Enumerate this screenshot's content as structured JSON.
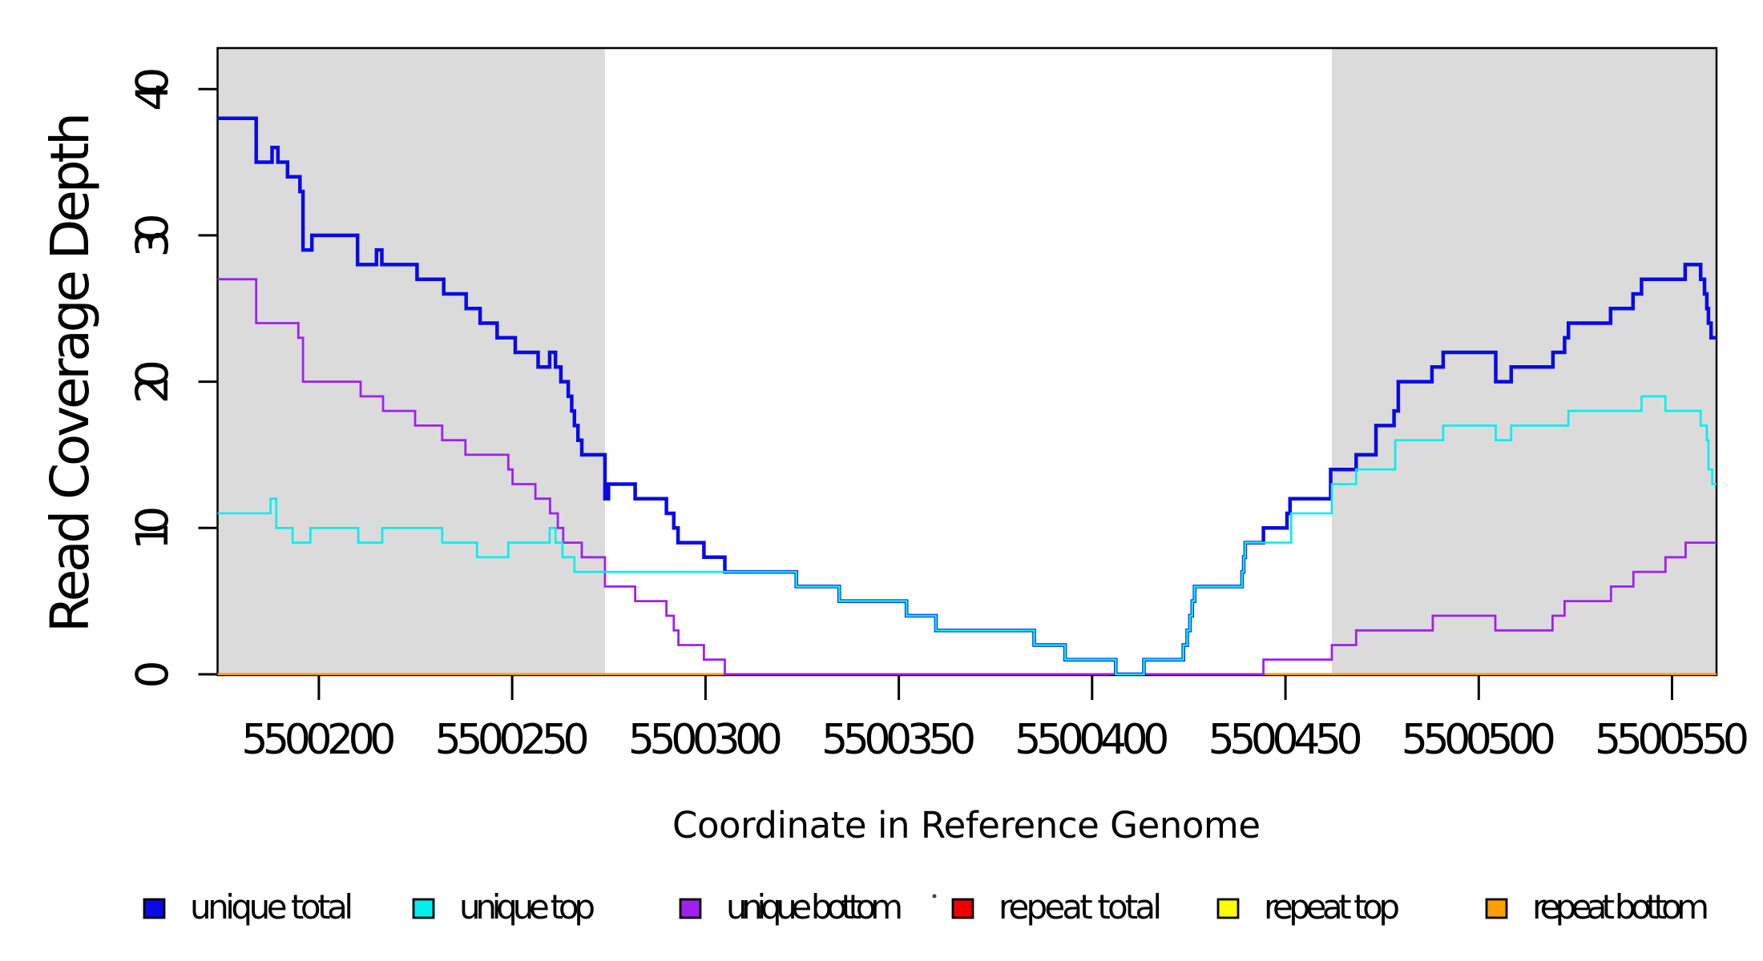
{
  "chart_data": {
    "type": "line",
    "subtype": "step-after",
    "title": "",
    "xlabel": "Coordinate in Reference Genome",
    "ylabel": "Read Coverage Depth",
    "xlim": [
      5500173.8,
      5500561.5
    ],
    "ylim": [
      0,
      42.8
    ],
    "x_ticks": [
      5500200,
      5500250,
      5500300,
      5500350,
      5500400,
      5500450,
      5500500,
      5500550
    ],
    "y_ticks": [
      0,
      10,
      20,
      30,
      40
    ],
    "grid": false,
    "legend_position": "bottom",
    "background_color": "#ffffff",
    "shaded_region_color": "#dbdbdb",
    "shaded_regions": [
      {
        "from": 5500173.8,
        "to": 5500274.0
      },
      {
        "from": 5500462.0,
        "to": 5500561.5
      }
    ],
    "series": [
      {
        "name": "unique total",
        "color": "#0a0ae6",
        "line_width": 4.5,
        "points": [
          [
            5500173.8,
            38
          ],
          [
            5500183.8,
            35
          ],
          [
            5500187.9,
            36
          ],
          [
            5500189.4,
            35
          ],
          [
            5500191.9,
            34
          ],
          [
            5500195.1,
            33
          ],
          [
            5500195.9,
            29
          ],
          [
            5500198.2,
            30
          ],
          [
            5500210.0,
            28
          ],
          [
            5500214.9,
            29
          ],
          [
            5500216.3,
            28
          ],
          [
            5500225.4,
            27
          ],
          [
            5500232.3,
            26
          ],
          [
            5500238.1,
            25
          ],
          [
            5500241.7,
            24
          ],
          [
            5500246.1,
            23
          ],
          [
            5500250.8,
            22
          ],
          [
            5500256.7,
            21
          ],
          [
            5500259.7,
            22
          ],
          [
            5500261.2,
            21
          ],
          [
            5500262.6,
            20
          ],
          [
            5500264.5,
            19
          ],
          [
            5500265.4,
            18
          ],
          [
            5500266.1,
            17
          ],
          [
            5500267.0,
            16
          ],
          [
            5500268.0,
            15
          ],
          [
            5500274.0,
            12
          ],
          [
            5500274.9,
            13
          ],
          [
            5500281.8,
            12
          ],
          [
            5500289.9,
            11
          ],
          [
            5500291.8,
            10
          ],
          [
            5500292.9,
            9
          ],
          [
            5500299.6,
            8
          ],
          [
            5500305.0,
            7
          ],
          [
            5500323.5,
            6
          ],
          [
            5500334.6,
            5
          ],
          [
            5500352.0,
            4
          ],
          [
            5500359.6,
            3
          ],
          [
            5500385.0,
            2
          ],
          [
            5500393.0,
            1
          ],
          [
            5500406.1,
            0
          ],
          [
            5500413.4,
            1
          ],
          [
            5500423.6,
            2
          ],
          [
            5500424.6,
            3
          ],
          [
            5500425.3,
            4
          ],
          [
            5500425.9,
            5
          ],
          [
            5500426.5,
            6
          ],
          [
            5500438.8,
            7
          ],
          [
            5500439.2,
            8
          ],
          [
            5500439.6,
            9
          ],
          [
            5500444.3,
            10
          ],
          [
            5500450.4,
            11
          ],
          [
            5500451.2,
            12
          ],
          [
            5500461.7,
            14
          ],
          [
            5500468.3,
            15
          ],
          [
            5500473.4,
            17
          ],
          [
            5500478.1,
            18
          ],
          [
            5500479.2,
            20
          ],
          [
            5500487.9,
            21
          ],
          [
            5500490.8,
            22
          ],
          [
            5500504.4,
            20
          ],
          [
            5500508.4,
            21
          ],
          [
            5500519.2,
            22
          ],
          [
            5500522.2,
            23
          ],
          [
            5500523.2,
            24
          ],
          [
            5500534.1,
            25
          ],
          [
            5500539.9,
            26
          ],
          [
            5500542.1,
            27
          ],
          [
            5500553.4,
            28
          ],
          [
            5500557.4,
            27
          ],
          [
            5500558.4,
            26
          ],
          [
            5500559.0,
            25
          ],
          [
            5500559.4,
            24
          ],
          [
            5500560.1,
            23
          ]
        ]
      },
      {
        "name": "unique top",
        "color": "#00eeee",
        "line_width": 2.6,
        "points": [
          [
            5500173.8,
            11
          ],
          [
            5500187.5,
            12
          ],
          [
            5500189.0,
            10
          ],
          [
            5500193.2,
            9
          ],
          [
            5500197.8,
            10
          ],
          [
            5500210.2,
            9
          ],
          [
            5500216.4,
            10
          ],
          [
            5500231.9,
            9
          ],
          [
            5500240.9,
            8
          ],
          [
            5500249.0,
            9
          ],
          [
            5500259.7,
            10
          ],
          [
            5500261.2,
            9
          ],
          [
            5500263.0,
            8
          ],
          [
            5500266.1,
            7
          ],
          [
            5500323.5,
            6
          ],
          [
            5500334.6,
            5
          ],
          [
            5500352.0,
            4
          ],
          [
            5500359.6,
            3
          ],
          [
            5500385.0,
            2
          ],
          [
            5500393.0,
            1
          ],
          [
            5500406.1,
            0
          ],
          [
            5500413.4,
            1
          ],
          [
            5500423.6,
            2
          ],
          [
            5500424.6,
            3
          ],
          [
            5500425.3,
            4
          ],
          [
            5500425.9,
            5
          ],
          [
            5500426.5,
            6
          ],
          [
            5500438.8,
            7
          ],
          [
            5500439.2,
            8
          ],
          [
            5500439.6,
            9
          ],
          [
            5500451.5,
            11
          ],
          [
            5500462.0,
            13
          ],
          [
            5500468.3,
            14
          ],
          [
            5500478.4,
            16
          ],
          [
            5500490.8,
            17
          ],
          [
            5500504.4,
            16
          ],
          [
            5500508.4,
            17
          ],
          [
            5500523.2,
            18
          ],
          [
            5500542.1,
            19
          ],
          [
            5500548.3,
            18
          ],
          [
            5500557.4,
            17
          ],
          [
            5500559.0,
            16
          ],
          [
            5500559.4,
            14
          ],
          [
            5500560.4,
            13
          ]
        ]
      },
      {
        "name": "unique bottom",
        "color": "#a020f0",
        "line_width": 2.8,
        "points": [
          [
            5500173.8,
            27
          ],
          [
            5500183.8,
            24
          ],
          [
            5500194.7,
            23
          ],
          [
            5500195.9,
            20
          ],
          [
            5500210.8,
            19
          ],
          [
            5500216.6,
            18
          ],
          [
            5500224.9,
            17
          ],
          [
            5500231.9,
            16
          ],
          [
            5500237.9,
            15
          ],
          [
            5500249.0,
            14
          ],
          [
            5500250.1,
            13
          ],
          [
            5500256.0,
            12
          ],
          [
            5500259.8,
            11
          ],
          [
            5500261.8,
            10
          ],
          [
            5500263.2,
            9
          ],
          [
            5500268.0,
            8
          ],
          [
            5500274.0,
            6
          ],
          [
            5500281.8,
            5
          ],
          [
            5500289.9,
            4
          ],
          [
            5500291.8,
            3
          ],
          [
            5500293.0,
            2
          ],
          [
            5500299.6,
            1
          ],
          [
            5500305.0,
            0
          ],
          [
            5500444.3,
            1
          ],
          [
            5500462.0,
            2
          ],
          [
            5500468.3,
            3
          ],
          [
            5500488.1,
            4
          ],
          [
            5500504.3,
            3
          ],
          [
            5500519.1,
            4
          ],
          [
            5500522.2,
            5
          ],
          [
            5500534.2,
            6
          ],
          [
            5500540.0,
            7
          ],
          [
            5500548.3,
            8
          ],
          [
            5500553.5,
            9
          ]
        ]
      },
      {
        "name": "repeat total",
        "color": "#ee0000",
        "line_width": 2.5,
        "points": [
          [
            5500173.8,
            0
          ]
        ]
      },
      {
        "name": "repeat top",
        "color": "#ffff00",
        "line_width": 2.5,
        "points": [
          [
            5500173.8,
            0
          ]
        ]
      },
      {
        "name": "repeat bottom",
        "color": "#ff9f00",
        "line_width": 3.2,
        "points": [
          [
            5500173.8,
            0
          ]
        ]
      }
    ],
    "draw_order": [
      3,
      4,
      5,
      2,
      0,
      1
    ],
    "stray_mark": {
      "near_legend_entry": "repeat total",
      "color": "#444444"
    }
  }
}
